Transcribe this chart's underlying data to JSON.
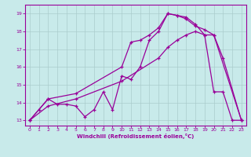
{
  "bg_color": "#c8eaea",
  "line_color": "#990099",
  "grid_color": "#aacccc",
  "xlabel": "Windchill (Refroidissement éolien,°C)",
  "xlabel_color": "#990099",
  "xlim": [
    -0.5,
    23.5
  ],
  "ylim": [
    12.7,
    19.5
  ],
  "xticks": [
    0,
    1,
    2,
    3,
    4,
    5,
    6,
    7,
    8,
    9,
    10,
    11,
    12,
    13,
    14,
    15,
    16,
    17,
    18,
    19,
    20,
    21,
    22,
    23
  ],
  "yticks": [
    13,
    14,
    15,
    16,
    17,
    18,
    19
  ],
  "curveA_x": [
    0,
    1,
    2,
    3,
    4,
    5,
    6,
    7,
    8,
    9,
    10,
    11,
    12,
    13,
    14,
    15,
    16,
    17,
    18,
    19,
    20,
    21,
    22,
    23
  ],
  "curveA_y": [
    13.0,
    13.6,
    14.2,
    13.9,
    13.9,
    13.8,
    13.2,
    13.6,
    14.6,
    13.6,
    15.5,
    15.3,
    16.0,
    17.5,
    18.0,
    19.0,
    18.9,
    18.8,
    18.4,
    17.8,
    14.6,
    14.6,
    13.0,
    13.0
  ],
  "curveB_x": [
    0,
    2,
    5,
    10,
    11,
    12,
    13,
    14,
    15,
    16,
    17,
    18,
    19,
    20,
    21,
    23
  ],
  "curveB_y": [
    13.0,
    14.2,
    14.5,
    16.0,
    17.4,
    17.5,
    17.8,
    18.2,
    19.0,
    18.9,
    18.7,
    18.3,
    18.1,
    17.8,
    16.5,
    13.0
  ],
  "curveC_x": [
    0,
    2,
    5,
    10,
    14,
    15,
    16,
    17,
    18,
    19,
    20,
    23
  ],
  "curveC_y": [
    13.0,
    13.8,
    14.2,
    15.2,
    16.5,
    17.1,
    17.5,
    17.8,
    18.0,
    17.8,
    17.8,
    13.0
  ]
}
